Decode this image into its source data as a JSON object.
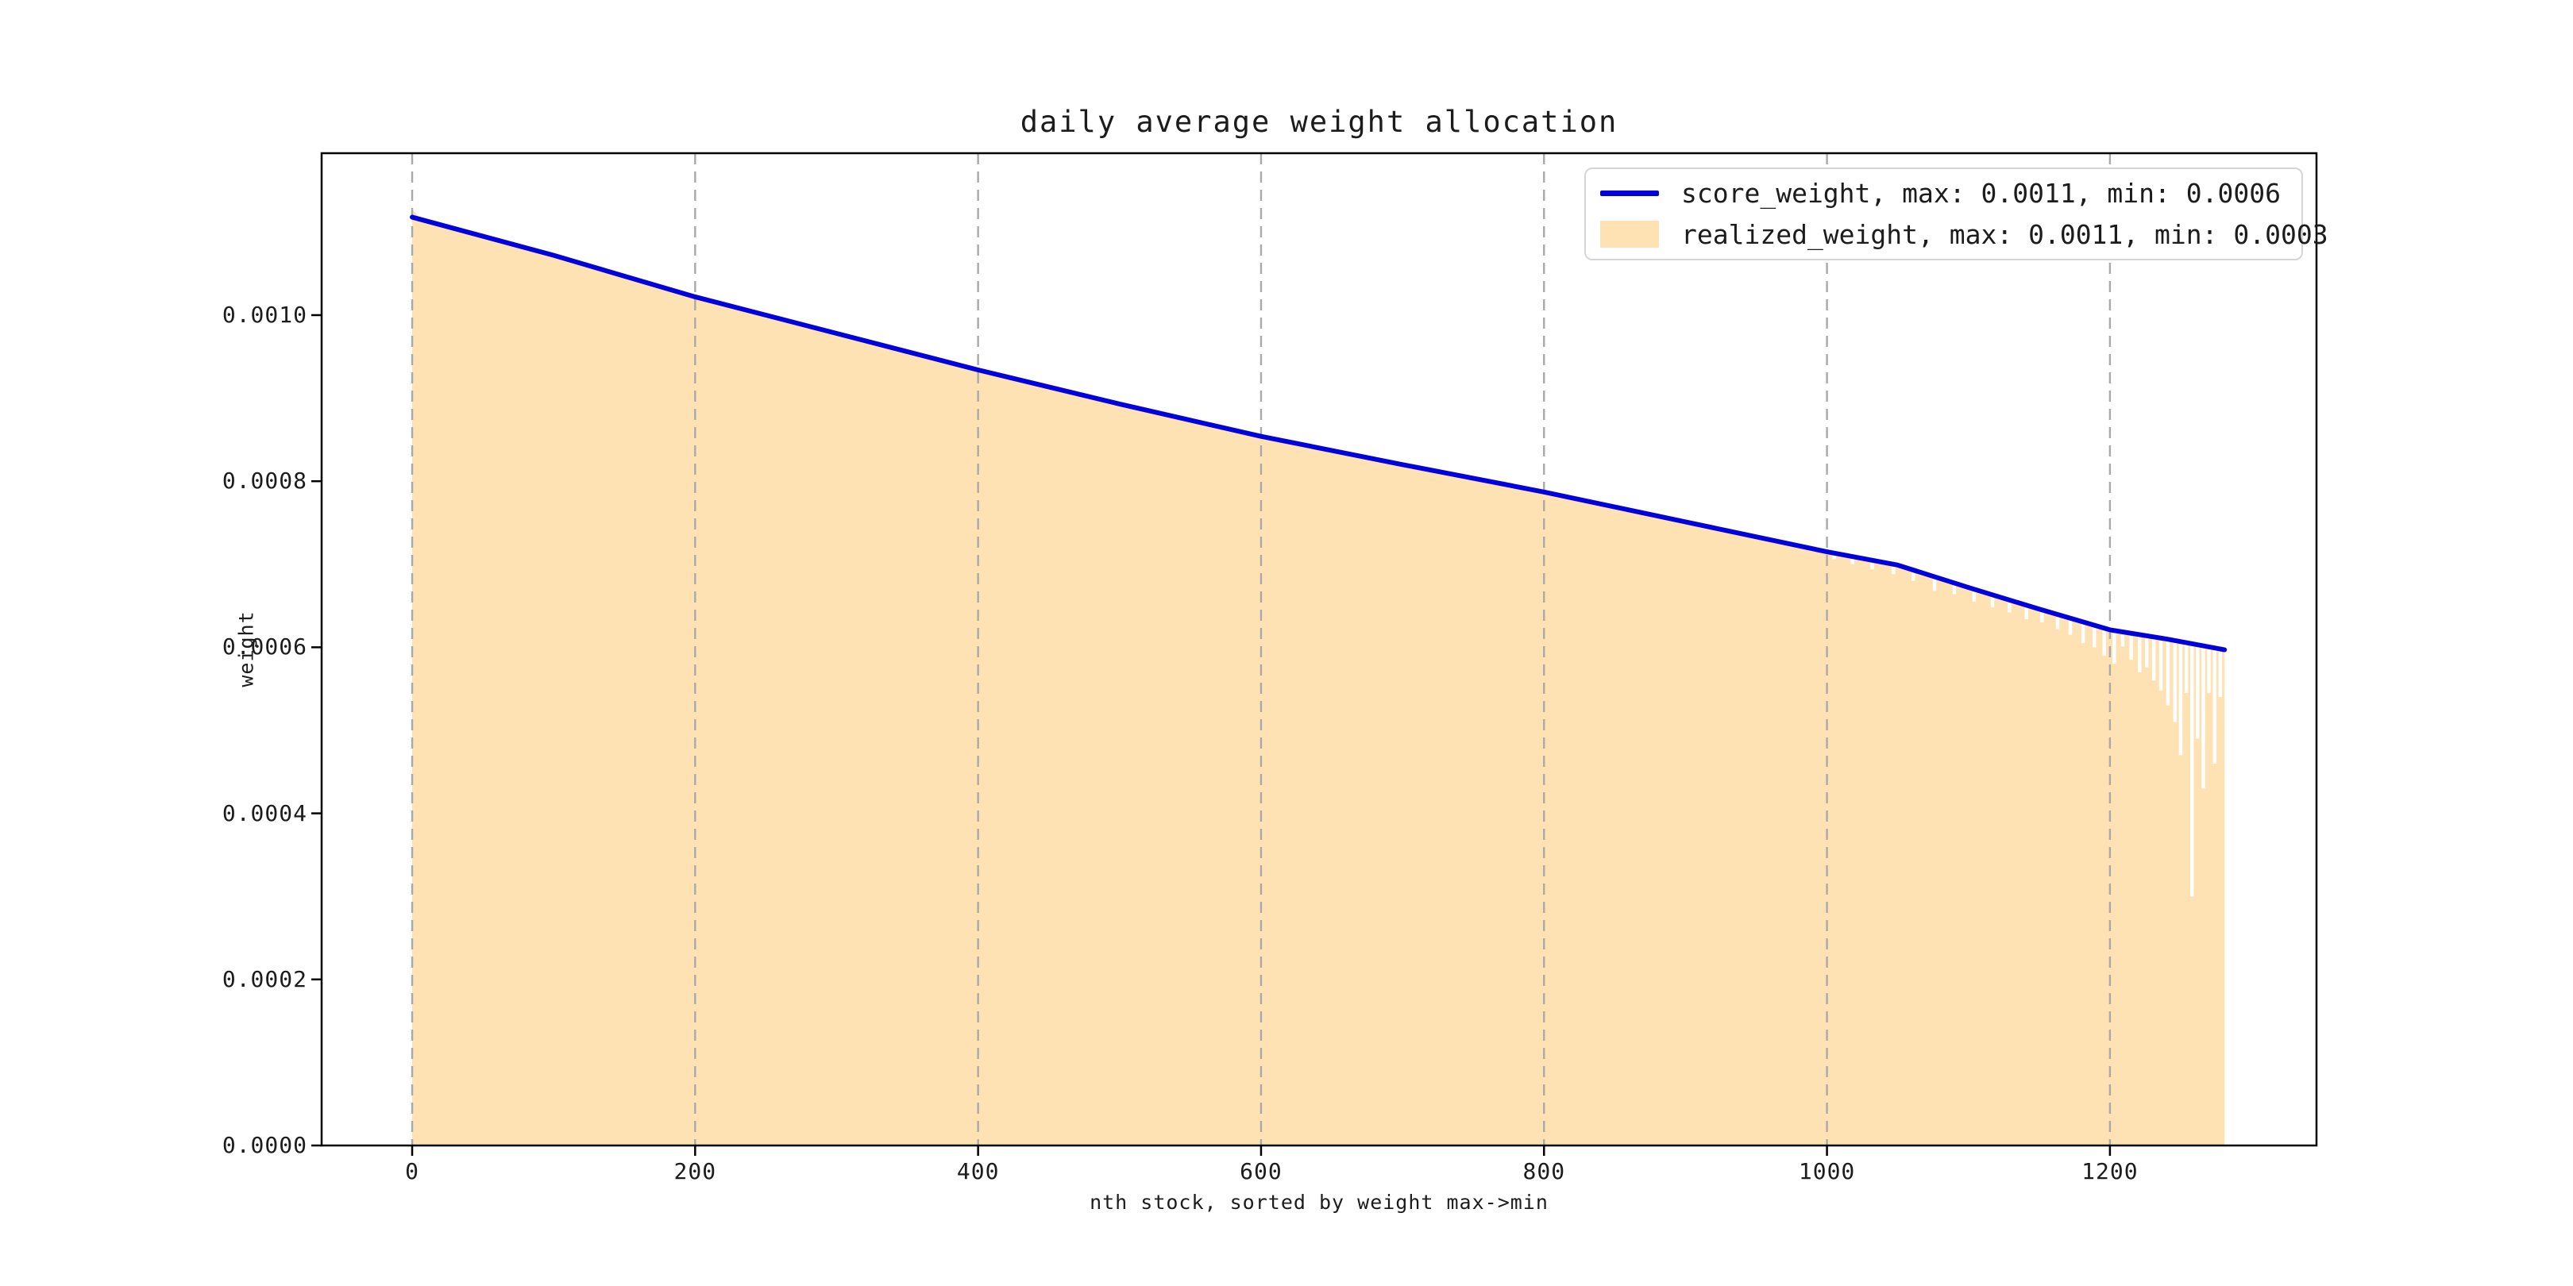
{
  "figure": {
    "background": "#ffffff",
    "text_color": "#1c1c1c",
    "spine_color": "#000000"
  },
  "chart_data": {
    "type": "area",
    "title": "daily average weight allocation",
    "xlabel": "nth stock, sorted by weight max->min",
    "ylabel": "weight",
    "xlim": [
      -64,
      1346
    ],
    "ylim": [
      0,
      0.001195
    ],
    "x_ticks": [
      {
        "v": 0,
        "label": "0"
      },
      {
        "v": 200,
        "label": "200"
      },
      {
        "v": 400,
        "label": "400"
      },
      {
        "v": 600,
        "label": "600"
      },
      {
        "v": 800,
        "label": "800"
      },
      {
        "v": 1000,
        "label": "1000"
      },
      {
        "v": 1200,
        "label": "1200"
      }
    ],
    "y_ticks": [
      {
        "v": 0.0,
        "label": "0.0000"
      },
      {
        "v": 0.0002,
        "label": "0.0002"
      },
      {
        "v": 0.0004,
        "label": "0.0004"
      },
      {
        "v": 0.0006,
        "label": "0.0006"
      },
      {
        "v": 0.0008,
        "label": "0.0008"
      },
      {
        "v": 0.001,
        "label": "0.0010"
      }
    ],
    "grid": {
      "axis": "x",
      "style": "dashed",
      "color": "#a9a9a9",
      "dash": [
        14,
        9
      ]
    },
    "legend": {
      "position": "upper-right",
      "entries": [
        {
          "label": "score_weight, max: 0.0011, min: 0.0006",
          "type": "line",
          "color": "#0101dd"
        },
        {
          "label": "realized_weight, max: 0.0011, min: 0.0003",
          "type": "patch",
          "color": "#ffe2b3"
        }
      ]
    },
    "series": [
      {
        "name": "score_weight",
        "type": "line",
        "color": "#0101dd",
        "max": 0.0011,
        "min": 0.0006,
        "x": [
          0,
          100,
          200,
          300,
          400,
          500,
          600,
          700,
          800,
          900,
          1000,
          1050,
          1100,
          1150,
          1200,
          1240,
          1281
        ],
        "values": [
          0.001118,
          0.001072,
          0.001022,
          0.000978,
          0.000934,
          0.000893,
          0.000854,
          0.00082,
          0.000787,
          0.000751,
          0.000715,
          0.000699,
          0.000672,
          0.000646,
          0.000621,
          0.00061,
          0.000597
        ]
      },
      {
        "name": "realized_weight",
        "type": "area",
        "color": "#ffe2b3",
        "max": 0.0011,
        "min": 0.0003,
        "follows": "score_weight",
        "start_spike": {
          "x": 0,
          "value": 0.001128
        },
        "x_end": 1281,
        "dips": [
          [
            955,
            0.000735
          ],
          [
            970,
            0.000728
          ],
          [
            985,
            0.000722
          ],
          [
            1005,
            0.000706
          ],
          [
            1018,
            0.0007
          ],
          [
            1032,
            0.000694
          ],
          [
            1047,
            0.000688
          ],
          [
            1061,
            0.00068
          ],
          [
            1076,
            0.000668
          ],
          [
            1090,
            0.000664
          ],
          [
            1104,
            0.000655
          ],
          [
            1117,
            0.000648
          ],
          [
            1129,
            0.000642
          ],
          [
            1141,
            0.000634
          ],
          [
            1152,
            0.00063
          ],
          [
            1163,
            0.000622
          ],
          [
            1172,
            0.000615
          ],
          [
            1181,
            0.000605
          ],
          [
            1189,
            0.0006
          ],
          [
            1196,
            0.00059
          ],
          [
            1203,
            0.00058
          ],
          [
            1209,
            0.000601
          ],
          [
            1215,
            0.000585
          ],
          [
            1221,
            0.00057
          ],
          [
            1226,
            0.000576
          ],
          [
            1231,
            0.00056
          ],
          [
            1236,
            0.000548
          ],
          [
            1241,
            0.00053
          ],
          [
            1246,
            0.00051
          ],
          [
            1250,
            0.00047
          ],
          [
            1254,
            0.000545
          ],
          [
            1258,
            0.0003
          ],
          [
            1262,
            0.00049
          ],
          [
            1266,
            0.00043
          ],
          [
            1270,
            0.000545
          ],
          [
            1274,
            0.00046
          ],
          [
            1278,
            0.00054
          ]
        ]
      }
    ]
  }
}
